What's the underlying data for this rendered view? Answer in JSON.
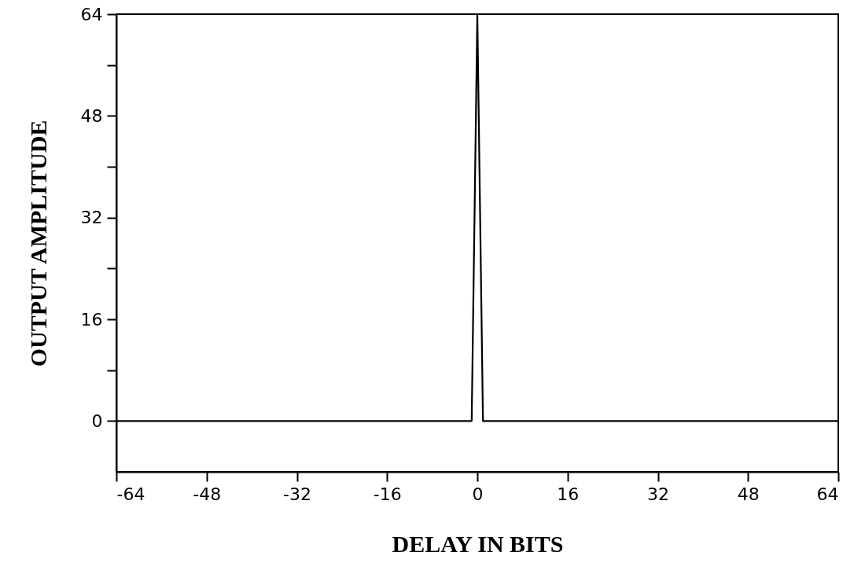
{
  "chart_data": {
    "type": "line",
    "xlabel": "DELAY IN BITS",
    "ylabel": "OUTPUT AMPLITUDE",
    "x": [
      -64,
      -1,
      0,
      1,
      64
    ],
    "series": [
      {
        "color": "#000000",
        "values": [
          0,
          0,
          64,
          0,
          0
        ]
      }
    ],
    "xlim": [
      -64,
      64
    ],
    "xticks": [
      -64,
      -48,
      -32,
      -16,
      0,
      16,
      32,
      48,
      64
    ],
    "ylim": [
      -8,
      64
    ],
    "yticks": [
      0,
      {
        "value": 8,
        "label": null
      },
      16,
      {
        "value": 24,
        "label": null
      },
      32,
      {
        "value": 40,
        "label": null
      },
      48,
      {
        "value": 56,
        "label": null
      },
      64
    ],
    "grid": false,
    "marker": "none",
    "line_style": "solid"
  }
}
